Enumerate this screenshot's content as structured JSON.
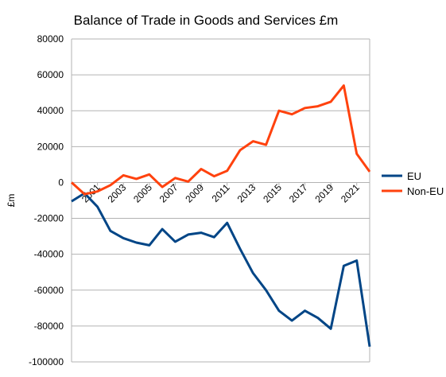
{
  "chart_data": {
    "type": "line",
    "title": "Balance of Trade in Goods and Services £m",
    "xlabel": "",
    "ylabel": "£m",
    "ylim": [
      -100000,
      80000
    ],
    "yticks": [
      80000,
      60000,
      40000,
      20000,
      0,
      -20000,
      -40000,
      -60000,
      -80000,
      -100000
    ],
    "ytick_labels": [
      "80000",
      "60000",
      "40000",
      "20000",
      "0",
      "-20000",
      "-40000",
      "-60000",
      "-80000",
      "-100000"
    ],
    "x": [
      1999,
      2000,
      2001,
      2002,
      2003,
      2004,
      2005,
      2006,
      2007,
      2008,
      2009,
      2010,
      2011,
      2012,
      2013,
      2014,
      2015,
      2016,
      2017,
      2018,
      2019,
      2020,
      2021,
      2022
    ],
    "xtick_labels": [
      "2001",
      "2003",
      "2005",
      "2007",
      "2009",
      "2011",
      "2013",
      "2015",
      "2017",
      "2019",
      "2021"
    ],
    "grid": true,
    "legend_position": "right",
    "series": [
      {
        "name": "EU",
        "color": "#004586",
        "values": [
          -10500,
          -6000,
          -13500,
          -27000,
          -31000,
          -33500,
          -35000,
          -26000,
          -33000,
          -29000,
          -28000,
          -30500,
          -22500,
          -37000,
          -50500,
          -60000,
          -71500,
          -77000,
          -71500,
          -75500,
          -81500,
          -46500,
          -43500,
          -91500
        ]
      },
      {
        "name": "Non-EU",
        "color": "#ff420e",
        "values": [
          0,
          -6500,
          -5000,
          -1500,
          4000,
          2000,
          4500,
          -2500,
          2500,
          500,
          7500,
          3500,
          6500,
          18000,
          23000,
          21000,
          40000,
          38000,
          41500,
          42500,
          45000,
          54000,
          16000,
          6000
        ]
      }
    ]
  }
}
